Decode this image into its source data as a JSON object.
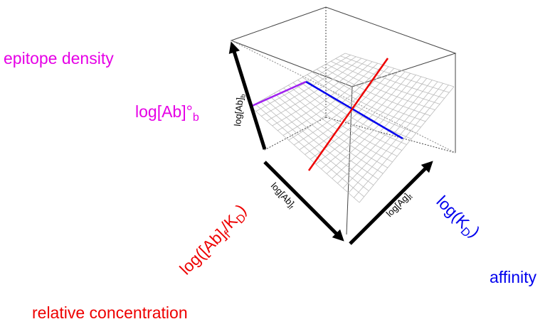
{
  "labels": {
    "epitope_density": "epitope density",
    "ab_bound_max": [
      {
        "text": "log[Ab]°"
      },
      {
        "text": "b",
        "sub": true
      }
    ],
    "axis_ab_bound": [
      {
        "text": "log[Ab]"
      },
      {
        "text": "b",
        "sub": true
      }
    ],
    "axis_ab_free": [
      {
        "text": "log[Ab]"
      },
      {
        "text": "f",
        "sub": true
      }
    ],
    "axis_ag_total": [
      {
        "text": "log[Ag]"
      },
      {
        "text": "t",
        "sub": true
      }
    ],
    "relative_concentration_formula": [
      {
        "text": "log([Ab]"
      },
      {
        "text": "f",
        "sub": true
      },
      {
        "text": "/K"
      },
      {
        "text": "D",
        "sub": true
      },
      {
        "text": ")"
      }
    ],
    "affinity_formula": [
      {
        "text": "log(K"
      },
      {
        "text": "D",
        "sub": true
      },
      {
        "text": ")"
      }
    ],
    "affinity": "affinity",
    "relative_concentration": "relative concentration"
  }
}
